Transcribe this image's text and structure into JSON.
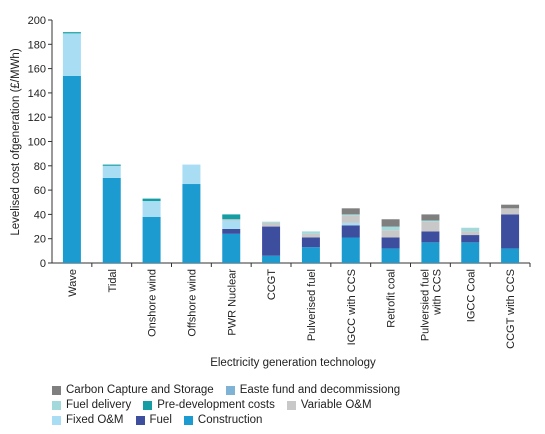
{
  "chart_data": {
    "type": "bar",
    "stacked": true,
    "title": "",
    "xlabel": "Electricity generation technology",
    "ylabel": "Levelised cost ofgeneration (£/MWh)",
    "ylim": [
      0,
      200
    ],
    "yticks": [
      0,
      20,
      40,
      60,
      80,
      100,
      120,
      140,
      160,
      180,
      200
    ],
    "grid": false,
    "legend_position": "bottom",
    "categories": [
      "Wave",
      "Tidal",
      "Onshore wind",
      "Offshore wind",
      "PWR Nuclear",
      "CCGT",
      "Pulverised fuel",
      "IGCC with CCS",
      "Retrofit coal",
      "Pulversied fuel with CCS",
      "IGCC Coal",
      "CCGT with CCS"
    ],
    "series": [
      {
        "name": "Construction",
        "color": "#1B9BD0",
        "values": [
          154,
          70,
          38,
          65,
          24,
          6,
          13,
          21,
          12,
          17,
          17,
          12
        ]
      },
      {
        "name": "Fuel",
        "color": "#3D4E9E",
        "values": [
          0,
          0,
          0,
          0,
          4,
          24,
          8,
          10,
          9,
          9,
          6,
          28
        ]
      },
      {
        "name": "Fixed O&M",
        "color": "#A9DDF3",
        "values": [
          35,
          10,
          13,
          16,
          7,
          0,
          0,
          2,
          0,
          0,
          0,
          0
        ]
      },
      {
        "name": "Variable O&M",
        "color": "#C8C8C8",
        "values": [
          0,
          0,
          0,
          0,
          1,
          3,
          3,
          6,
          6,
          8,
          3,
          5
        ]
      },
      {
        "name": "Pre-development costs",
        "color": "#149DA3",
        "values": [
          1,
          1,
          2,
          0,
          4,
          0,
          0,
          0,
          0,
          0,
          0,
          0
        ]
      },
      {
        "name": "Fuel delivery",
        "color": "#A3D9DA",
        "values": [
          0,
          0,
          0,
          0,
          0,
          1,
          2,
          1,
          3,
          1,
          3,
          0
        ]
      },
      {
        "name": "Easte fund and decommissiong",
        "color": "#7FB3D5",
        "values": [
          0,
          0,
          0,
          0,
          0,
          0,
          0,
          0,
          0,
          0,
          0,
          0
        ]
      },
      {
        "name": "Carbon Capture and Storage",
        "color": "#7F7F7F",
        "values": [
          0,
          0,
          0,
          0,
          0,
          0,
          0,
          5,
          6,
          5,
          0,
          3
        ]
      }
    ],
    "legend_rows": [
      [
        "Carbon Capture and Storage",
        "Easte fund and decommissiong"
      ],
      [
        "Fuel delivery",
        "Pre-development costs",
        "Variable O&M"
      ],
      [
        "Fixed O&M",
        "Fuel",
        "Construction"
      ]
    ]
  }
}
